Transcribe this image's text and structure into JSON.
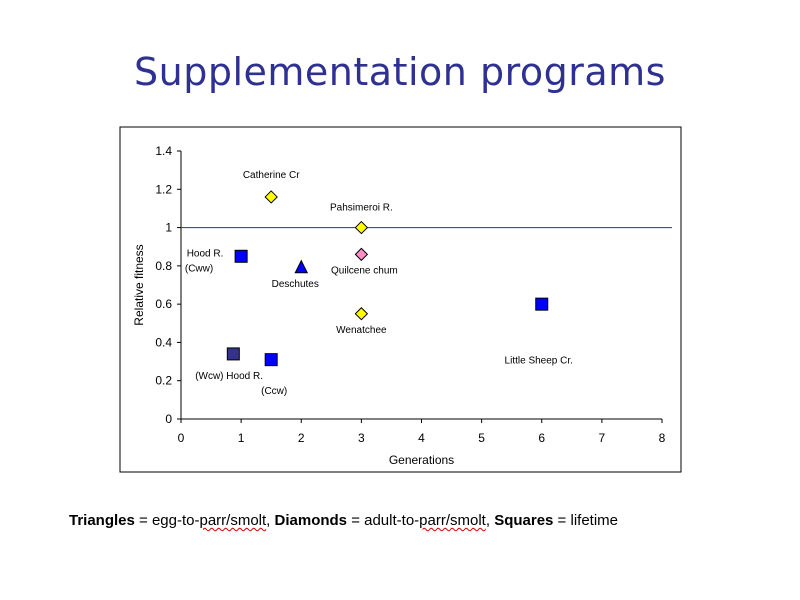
{
  "slide": {
    "title": "Supplementation programs"
  },
  "footer": {
    "triangles_label": "Triangles",
    "triangles_text_a": " = egg-to-",
    "triangles_text_b": "parr/smolt",
    "triangles_text_c": ", ",
    "diamonds_label": "Diamonds",
    "diamonds_text_a": " = adult-to-",
    "diamonds_text_b": "parr/smolt",
    "diamonds_text_c": ", ",
    "squares_label": "Squares",
    "squares_text": " = lifetime"
  },
  "chart_data": {
    "type": "scatter",
    "xlabel": "Generations",
    "ylabel": "Relative fitness",
    "xlim": [
      0,
      8
    ],
    "ylim": [
      0,
      1.4
    ],
    "x_ticks": [
      "0",
      "1",
      "2",
      "3",
      "4",
      "5",
      "6",
      "7",
      "8"
    ],
    "y_ticks": [
      "0",
      "0.2",
      "0.4",
      "0.6",
      "0.8",
      "1",
      "1.2",
      "1.4"
    ],
    "reference_line_y": 1,
    "grid": false,
    "colors": {
      "axis": "#000000",
      "reference_line": "#2e3192",
      "square_blue": "#0000ff",
      "square_navy": "#33338c",
      "triangle_blue": "#0000ff",
      "diamond_yellow": "#ffff00",
      "diamond_pink": "#ff8ec6"
    },
    "points": [
      {
        "x": 1.5,
        "y": 1.16,
        "marker": "diamond",
        "color": "#ffff00"
      },
      {
        "x": 3.0,
        "y": 1.0,
        "marker": "diamond",
        "color": "#ffff00"
      },
      {
        "x": 3.0,
        "y": 0.86,
        "marker": "diamond",
        "color": "#ff8ec6"
      },
      {
        "x": 3.0,
        "y": 0.55,
        "marker": "diamond",
        "color": "#ffff00"
      },
      {
        "x": 1.0,
        "y": 0.85,
        "marker": "square",
        "color": "#0000ff"
      },
      {
        "x": 2.0,
        "y": 0.79,
        "marker": "triangle",
        "color": "#0000ff"
      },
      {
        "x": 0.87,
        "y": 0.34,
        "marker": "square",
        "color": "#33338c"
      },
      {
        "x": 1.5,
        "y": 0.31,
        "marker": "square",
        "color": "#0000ff"
      },
      {
        "x": 6.0,
        "y": 0.6,
        "marker": "square",
        "color": "#0000ff"
      }
    ],
    "annotations": [
      {
        "text": "Catherine Cr",
        "x": 1.5,
        "y": 1.26
      },
      {
        "text": "Pahsimeroi R.",
        "x": 3.0,
        "y": 1.09
      },
      {
        "text": "Hood R.",
        "x": 0.4,
        "y": 0.85
      },
      {
        "text": "(Cww)",
        "x": 0.3,
        "y": 0.77
      },
      {
        "text": "Deschutes",
        "x": 1.9,
        "y": 0.69
      },
      {
        "text": "Quilcene chum",
        "x": 3.05,
        "y": 0.76
      },
      {
        "text": "Wenatchee",
        "x": 3.0,
        "y": 0.45
      },
      {
        "text": "Little Sheep Cr.",
        "x": 5.95,
        "y": 0.29
      },
      {
        "text": "(Wcw) Hood R.",
        "x": 0.8,
        "y": 0.21
      },
      {
        "text": "(Ccw)",
        "x": 1.55,
        "y": 0.13
      }
    ]
  }
}
